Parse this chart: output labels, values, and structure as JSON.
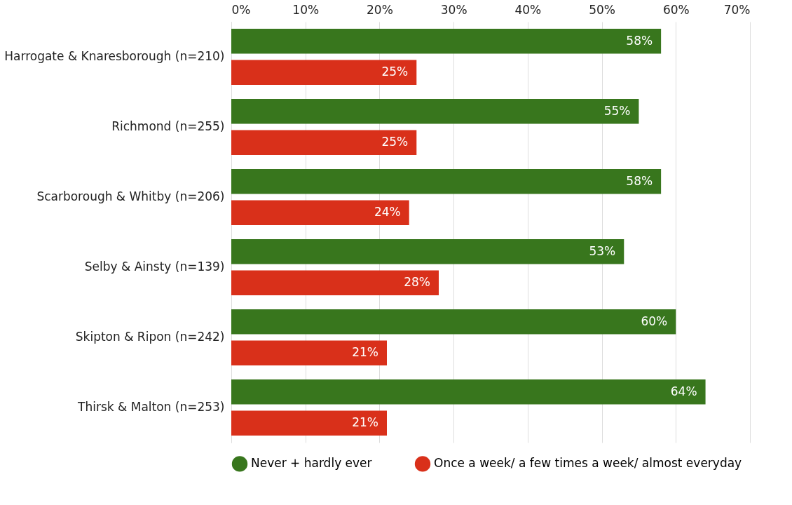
{
  "chart_data": {
    "type": "bar",
    "orientation": "horizontal",
    "categories": [
      "Harrogate & Knaresborough (n=210)",
      "Richmond (n=255)",
      "Scarborough & Whitby (n=206)",
      "Selby & Ainsty (n=139)",
      "Skipton & Ripon (n=242)",
      "Thirsk & Malton (n=253)"
    ],
    "series": [
      {
        "name": "Never + hardly ever",
        "color": "#38761d",
        "values": [
          58,
          55,
          58,
          53,
          60,
          64
        ],
        "value_labels": [
          "58%",
          "55%",
          "58%",
          "53%",
          "60%",
          "64%"
        ]
      },
      {
        "name": "Once a week/ a few times a week/ almost everyday",
        "color": "#d9301a",
        "values": [
          25,
          25,
          24,
          28,
          21,
          21
        ],
        "value_labels": [
          "25%",
          "25%",
          "24%",
          "28%",
          "21%",
          "21%"
        ]
      }
    ],
    "xlim": [
      0,
      70
    ],
    "xticks": [
      {
        "value": 0,
        "label": "0%"
      },
      {
        "value": 10,
        "label": "10%"
      },
      {
        "value": 20,
        "label": "20%"
      },
      {
        "value": 30,
        "label": "30%"
      },
      {
        "value": 40,
        "label": "40%"
      },
      {
        "value": 50,
        "label": "50%"
      },
      {
        "value": 60,
        "label": "60%"
      },
      {
        "value": 70,
        "label": "70%"
      }
    ],
    "grid": "x",
    "legend": "bottom"
  }
}
